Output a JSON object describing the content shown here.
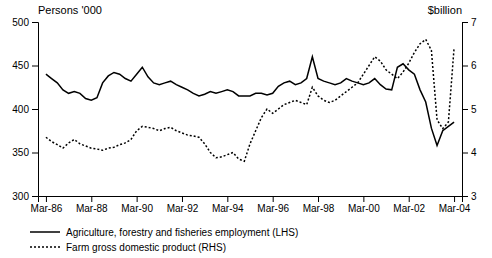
{
  "chart_data": {
    "type": "line",
    "y_label": "Persons '000",
    "y2_label": "$billion",
    "x": [
      1986.25,
      1986.5,
      1986.75,
      1987.0,
      1987.25,
      1987.5,
      1987.75,
      1988.0,
      1988.25,
      1988.5,
      1988.75,
      1989.0,
      1989.25,
      1989.5,
      1989.75,
      1990.0,
      1990.25,
      1990.5,
      1990.75,
      1991.0,
      1991.25,
      1991.5,
      1991.75,
      1992.0,
      1992.25,
      1992.5,
      1992.75,
      1993.0,
      1993.25,
      1993.5,
      1993.75,
      1994.0,
      1994.25,
      1994.5,
      1994.75,
      1995.0,
      1995.25,
      1995.5,
      1995.75,
      1996.0,
      1996.25,
      1996.5,
      1996.75,
      1997.0,
      1997.25,
      1997.5,
      1997.75,
      1998.0,
      1998.25,
      1998.5,
      1998.75,
      1999.0,
      1999.25,
      1999.5,
      1999.75,
      2000.0,
      2000.25,
      2000.5,
      2000.75,
      2001.0,
      2001.25,
      2001.5,
      2001.75,
      2002.0,
      2002.25,
      2002.5,
      2002.75,
      2003.0,
      2003.25,
      2003.5,
      2003.75,
      2004.0,
      2004.25
    ],
    "series": [
      {
        "name": "Agriculture, forestry and fisheries employment (LHS)",
        "color": "#000000",
        "line_style": "solid",
        "values": [
          440,
          435,
          430,
          422,
          418,
          420,
          418,
          412,
          410,
          413,
          430,
          438,
          442,
          440,
          435,
          432,
          440,
          448,
          437,
          430,
          428,
          430,
          432,
          428,
          425,
          422,
          418,
          415,
          417,
          420,
          418,
          420,
          422,
          420,
          415,
          415,
          415,
          418,
          418,
          416,
          418,
          426,
          430,
          432,
          428,
          430,
          435,
          460,
          435,
          432,
          430,
          428,
          430,
          435,
          432,
          430,
          428,
          430,
          435,
          428,
          423,
          422,
          448,
          452,
          445,
          440,
          422,
          408,
          378,
          358,
          375,
          380,
          385
        ]
      },
      {
        "name": "Farm gross domestic product (RHS)",
        "color": "#000000",
        "line_style": "dotted",
        "axis": "y2",
        "values": [
          4.35,
          4.25,
          4.18,
          4.1,
          4.22,
          4.3,
          4.2,
          4.15,
          4.1,
          4.08,
          4.05,
          4.1,
          4.12,
          4.18,
          4.22,
          4.3,
          4.5,
          4.6,
          4.58,
          4.55,
          4.5,
          4.55,
          4.58,
          4.5,
          4.45,
          4.4,
          4.38,
          4.35,
          4.2,
          4.0,
          3.88,
          3.9,
          3.95,
          4.0,
          3.85,
          3.8,
          4.2,
          4.5,
          4.8,
          5.0,
          4.9,
          5.0,
          5.1,
          5.15,
          5.2,
          5.15,
          5.1,
          5.5,
          5.3,
          5.2,
          5.15,
          5.2,
          5.3,
          5.4,
          5.5,
          5.6,
          5.8,
          6.0,
          6.2,
          6.1,
          5.9,
          5.8,
          5.7,
          5.85,
          6.05,
          6.3,
          6.5,
          6.6,
          6.35,
          4.75,
          4.55,
          4.7,
          6.4
        ]
      }
    ],
    "xlim": [
      1985.9,
      2004.6
    ],
    "xticks": [
      {
        "value": 1986.25,
        "label": "Mar-86"
      },
      {
        "value": 1988.25,
        "label": "Mar-88"
      },
      {
        "value": 1990.25,
        "label": "Mar-90"
      },
      {
        "value": 1992.25,
        "label": "Mar-92"
      },
      {
        "value": 1994.25,
        "label": "Mar-94"
      },
      {
        "value": 1996.25,
        "label": "Mar-96"
      },
      {
        "value": 1998.25,
        "label": "Mar-98"
      },
      {
        "value": 2000.25,
        "label": "Mar-00"
      },
      {
        "value": 2002.25,
        "label": "Mar-02"
      },
      {
        "value": 2004.25,
        "label": "Mar-04"
      }
    ],
    "ylim": [
      300,
      500
    ],
    "yticks": [
      300,
      350,
      400,
      450,
      500
    ],
    "y2lim": [
      3,
      7
    ],
    "y2ticks": [
      3,
      4,
      5,
      6,
      7
    ],
    "grid": false,
    "legend": "bottom"
  }
}
